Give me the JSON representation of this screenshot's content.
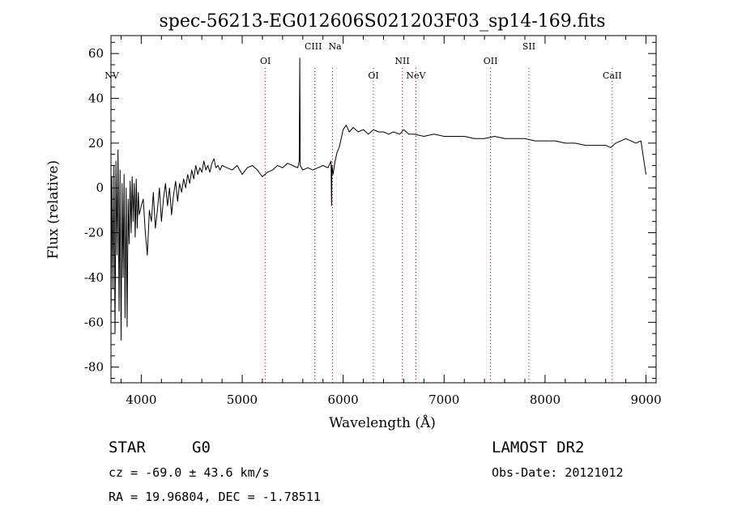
{
  "chart_data": {
    "type": "line",
    "title": "spec-56213-EG012606S021203F03_sp14-169.fits",
    "xlabel": "Wavelength (Å)",
    "ylabel": "Flux (relative)",
    "xlim": [
      3700,
      9100
    ],
    "ylim": [
      -87,
      68
    ],
    "xticks": [
      4000,
      5000,
      6000,
      7000,
      8000,
      9000
    ],
    "yticks": [
      -80,
      -60,
      -40,
      -20,
      0,
      20,
      40,
      60
    ],
    "grid": false,
    "series": [
      {
        "color": "#000000",
        "points": [
          [
            3700,
            -60
          ],
          [
            3710,
            5
          ],
          [
            3720,
            -45
          ],
          [
            3730,
            10
          ],
          [
            3740,
            -65
          ],
          [
            3750,
            12
          ],
          [
            3760,
            -30
          ],
          [
            3770,
            17
          ],
          [
            3780,
            -55
          ],
          [
            3790,
            8
          ],
          [
            3800,
            -68
          ],
          [
            3810,
            2
          ],
          [
            3820,
            -40
          ],
          [
            3830,
            6
          ],
          [
            3840,
            -58
          ],
          [
            3850,
            0
          ],
          [
            3860,
            -62
          ],
          [
            3870,
            -5
          ],
          [
            3880,
            -25
          ],
          [
            3890,
            3
          ],
          [
            3900,
            -20
          ],
          [
            3910,
            5
          ],
          [
            3920,
            -15
          ],
          [
            3930,
            2
          ],
          [
            3940,
            -22
          ],
          [
            3950,
            4
          ],
          [
            3960,
            -18
          ],
          [
            3970,
            -2
          ],
          [
            3980,
            -12
          ],
          [
            4000,
            -8
          ],
          [
            4020,
            -5
          ],
          [
            4040,
            -20
          ],
          [
            4060,
            -30
          ],
          [
            4080,
            -10
          ],
          [
            4100,
            -15
          ],
          [
            4120,
            -2
          ],
          [
            4140,
            -18
          ],
          [
            4160,
            -10
          ],
          [
            4180,
            0
          ],
          [
            4200,
            -15
          ],
          [
            4220,
            -5
          ],
          [
            4240,
            2
          ],
          [
            4260,
            -8
          ],
          [
            4280,
            0
          ],
          [
            4300,
            -12
          ],
          [
            4320,
            -3
          ],
          [
            4340,
            3
          ],
          [
            4360,
            -6
          ],
          [
            4380,
            2
          ],
          [
            4400,
            -2
          ],
          [
            4420,
            4
          ],
          [
            4440,
            0
          ],
          [
            4460,
            6
          ],
          [
            4480,
            2
          ],
          [
            4500,
            8
          ],
          [
            4520,
            4
          ],
          [
            4540,
            10
          ],
          [
            4560,
            6
          ],
          [
            4580,
            9
          ],
          [
            4600,
            7
          ],
          [
            4620,
            12
          ],
          [
            4640,
            8
          ],
          [
            4660,
            10
          ],
          [
            4680,
            7
          ],
          [
            4700,
            11
          ],
          [
            4720,
            13
          ],
          [
            4740,
            9
          ],
          [
            4760,
            10
          ],
          [
            4780,
            8
          ],
          [
            4800,
            10
          ],
          [
            4850,
            9
          ],
          [
            4900,
            8
          ],
          [
            4950,
            10
          ],
          [
            5000,
            6
          ],
          [
            5050,
            9
          ],
          [
            5100,
            10
          ],
          [
            5150,
            8
          ],
          [
            5200,
            5
          ],
          [
            5250,
            7
          ],
          [
            5300,
            8
          ],
          [
            5350,
            10
          ],
          [
            5400,
            9
          ],
          [
            5450,
            11
          ],
          [
            5500,
            10
          ],
          [
            5550,
            9
          ],
          [
            5565,
            12
          ],
          [
            5570,
            58
          ],
          [
            5575,
            10
          ],
          [
            5600,
            8
          ],
          [
            5650,
            9
          ],
          [
            5700,
            8
          ],
          [
            5750,
            9
          ],
          [
            5800,
            10
          ],
          [
            5850,
            9
          ],
          [
            5880,
            12
          ],
          [
            5885,
            -8
          ],
          [
            5890,
            10
          ],
          [
            5900,
            6
          ],
          [
            5920,
            12
          ],
          [
            5940,
            16
          ],
          [
            5960,
            18
          ],
          [
            5980,
            22
          ],
          [
            6000,
            26
          ],
          [
            6030,
            28
          ],
          [
            6060,
            25
          ],
          [
            6100,
            27
          ],
          [
            6150,
            25
          ],
          [
            6200,
            26
          ],
          [
            6250,
            24
          ],
          [
            6300,
            26
          ],
          [
            6350,
            25
          ],
          [
            6400,
            25
          ],
          [
            6450,
            24
          ],
          [
            6500,
            25
          ],
          [
            6560,
            24
          ],
          [
            6600,
            26
          ],
          [
            6650,
            24
          ],
          [
            6700,
            24
          ],
          [
            6800,
            23
          ],
          [
            6900,
            24
          ],
          [
            7000,
            23
          ],
          [
            7100,
            23
          ],
          [
            7200,
            23
          ],
          [
            7300,
            22
          ],
          [
            7400,
            22
          ],
          [
            7500,
            23
          ],
          [
            7600,
            22
          ],
          [
            7700,
            22
          ],
          [
            7800,
            22
          ],
          [
            7900,
            21
          ],
          [
            8000,
            21
          ],
          [
            8100,
            21
          ],
          [
            8200,
            20
          ],
          [
            8300,
            20
          ],
          [
            8400,
            19
          ],
          [
            8500,
            19
          ],
          [
            8600,
            19
          ],
          [
            8650,
            18
          ],
          [
            8700,
            20
          ],
          [
            8750,
            21
          ],
          [
            8800,
            22
          ],
          [
            8850,
            21
          ],
          [
            8900,
            20
          ],
          [
            8950,
            21
          ],
          [
            9000,
            6
          ]
        ]
      }
    ],
    "lines": [
      {
        "label": "NV",
        "x": 3700,
        "label_row": "low"
      },
      {
        "label": "OI",
        "x": 5230,
        "label_row": "mid"
      },
      {
        "label": "CIII",
        "x": 5720,
        "label_row": "top"
      },
      {
        "label": "Na",
        "x": 5895,
        "label_row": "top"
      },
      {
        "label": "OI",
        "x": 6300,
        "label_row": "low"
      },
      {
        "label": "NII",
        "x": 6585,
        "label_row": "mid"
      },
      {
        "label": "NeV",
        "x": 6720,
        "label_row": "low"
      },
      {
        "label": "OII",
        "x": 7460,
        "label_row": "mid"
      },
      {
        "label": "SII",
        "x": 7840,
        "label_row": "top"
      },
      {
        "label": "CaII",
        "x": 8665,
        "label_row": "low"
      }
    ],
    "line_color": "#cc0000"
  },
  "info": {
    "class_label": "STAR",
    "subclass_label": "G0",
    "survey": "LAMOST DR2",
    "cz": "cz = -69.0 ± 43.6 km/s",
    "obs_date": "Obs-Date: 20121012",
    "coords": "RA =  19.96804, DEC =  -1.78511"
  }
}
